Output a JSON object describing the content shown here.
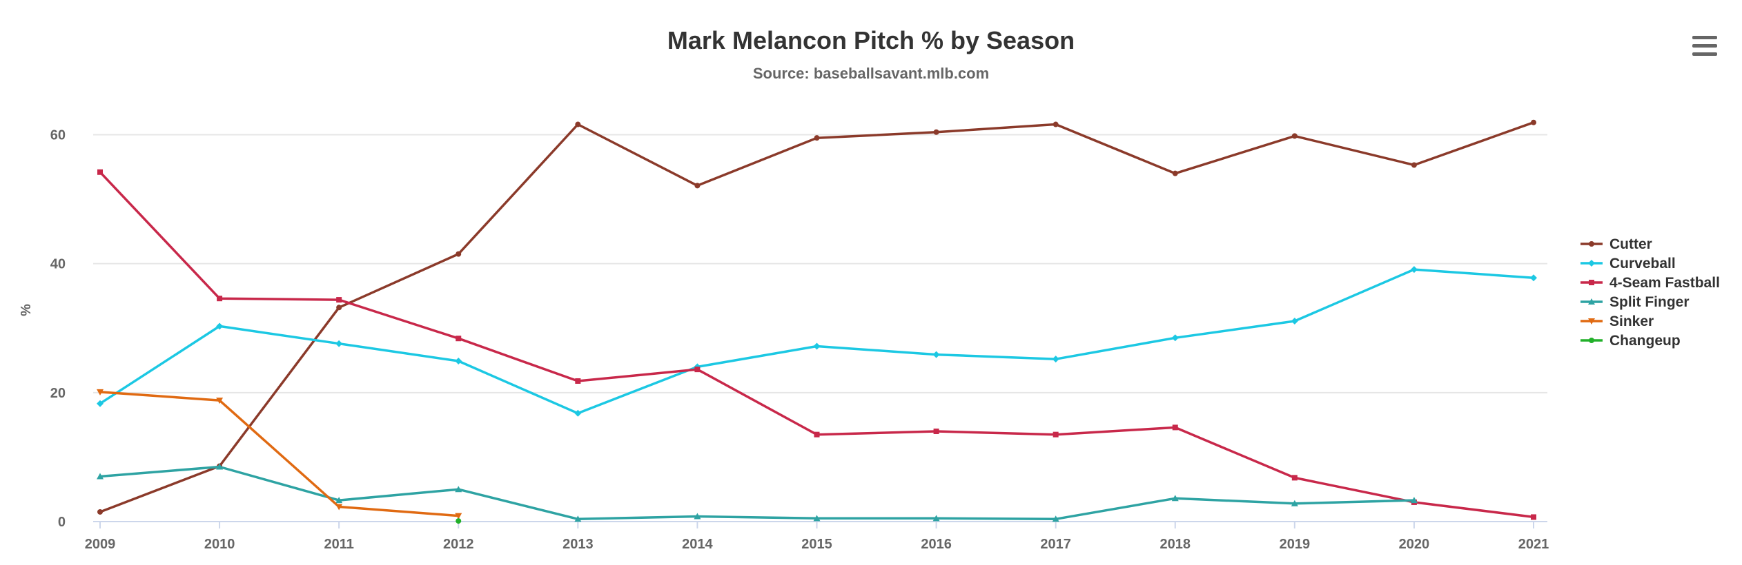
{
  "chart_data": {
    "type": "line",
    "title": "Mark Melancon Pitch % by Season",
    "subtitle": "Source: baseballsavant.mlb.com",
    "xlabel": "",
    "ylabel": "%",
    "x": [
      "2009",
      "2010",
      "2011",
      "2012",
      "2013",
      "2014",
      "2015",
      "2016",
      "2017",
      "2018",
      "2019",
      "2020",
      "2021"
    ],
    "ylim": [
      0,
      60
    ],
    "yticks": [
      0,
      20,
      40,
      60
    ],
    "grid": true,
    "legend": "right",
    "series": [
      {
        "name": "Cutter",
        "color": "#8b3a2a",
        "marker": "circle",
        "values": [
          1.5,
          8.6,
          33.2,
          41.5,
          61.6,
          52.1,
          59.5,
          60.4,
          61.6,
          54.0,
          59.8,
          55.3,
          61.9
        ]
      },
      {
        "name": "Curveball",
        "color": "#1cc8e3",
        "marker": "diamond",
        "values": [
          18.3,
          30.3,
          27.6,
          24.9,
          16.8,
          24.0,
          27.2,
          25.9,
          25.2,
          28.5,
          31.1,
          39.1,
          37.8
        ]
      },
      {
        "name": "4-Seam Fastball",
        "color": "#c8284a",
        "marker": "square",
        "values": [
          54.2,
          34.6,
          34.4,
          28.4,
          21.8,
          23.6,
          13.5,
          14.0,
          13.5,
          14.6,
          6.8,
          3.0,
          0.7
        ]
      },
      {
        "name": "Split Finger",
        "color": "#2ea3a3",
        "marker": "triangle",
        "values": [
          7.0,
          8.5,
          3.3,
          5.0,
          0.4,
          0.8,
          0.5,
          0.5,
          0.4,
          3.6,
          2.8,
          3.3,
          null
        ]
      },
      {
        "name": "Sinker",
        "color": "#e06a12",
        "marker": "triangle-down",
        "values": [
          20.1,
          18.8,
          2.3,
          0.9,
          null,
          null,
          null,
          null,
          null,
          null,
          null,
          null,
          null
        ]
      },
      {
        "name": "Changeup",
        "color": "#22b02a",
        "marker": "circle",
        "values": [
          null,
          null,
          null,
          0.1,
          null,
          null,
          null,
          null,
          null,
          null,
          null,
          null,
          null
        ]
      }
    ]
  },
  "menu": {
    "icon": "hamburger-menu-icon"
  }
}
